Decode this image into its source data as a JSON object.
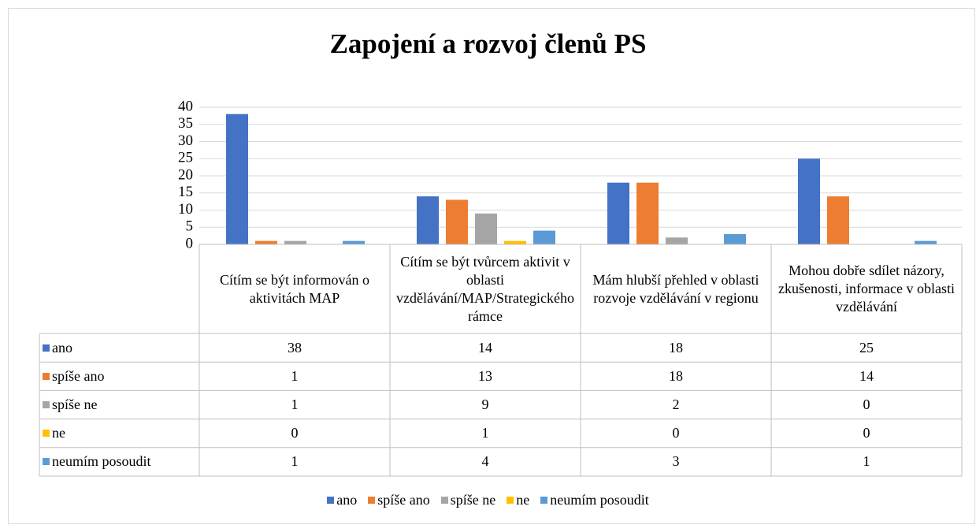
{
  "chart_data": {
    "type": "bar",
    "title": "Zapojení a rozvoj členů PS",
    "categories": [
      "Cítím se být informován o aktivitách MAP",
      "Cítím se být tvůrcem aktivit v oblasti vzdělávání/MAP/Strategického rámce",
      "Mám hlubší přehled v oblasti rozvoje vzdělávání v regionu",
      "Mohou dobře sdílet názory, zkušenosti, informace v oblasti vzdělávání"
    ],
    "series": [
      {
        "name": "ano",
        "color": "#4472c4",
        "values": [
          38,
          14,
          18,
          25
        ]
      },
      {
        "name": "spíše ano",
        "color": "#ed7d31",
        "values": [
          1,
          13,
          18,
          14
        ]
      },
      {
        "name": "spíše ne",
        "color": "#a5a5a5",
        "values": [
          1,
          9,
          2,
          0
        ]
      },
      {
        "name": "ne",
        "color": "#ffc000",
        "values": [
          0,
          1,
          0,
          0
        ]
      },
      {
        "name": "neumím posoudit",
        "color": "#5b9bd5",
        "values": [
          1,
          4,
          3,
          1
        ]
      }
    ],
    "ylim": [
      0,
      40
    ],
    "yticks": [
      0,
      5,
      10,
      15,
      20,
      25,
      30,
      35,
      40
    ],
    "grid": true,
    "legend": "bottom",
    "data_table": true
  }
}
